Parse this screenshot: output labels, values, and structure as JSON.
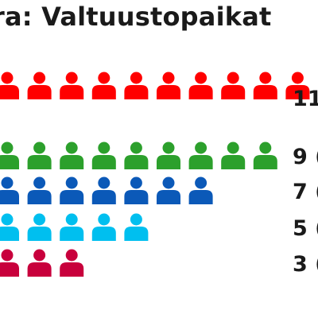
{
  "chart_data": {
    "type": "pictogram",
    "title": "ra: Valtuustopaikat",
    "rows": [
      {
        "seats": 11,
        "label": "11",
        "color": "#ff0000"
      },
      {
        "seats": 9,
        "label": "9 (",
        "color": "#2ca02c"
      },
      {
        "seats": 7,
        "label": "7 (",
        "color": "#0b59b8"
      },
      {
        "seats": 5,
        "label": "5 (",
        "color": "#00bfef"
      },
      {
        "seats": 3,
        "label": "3 (",
        "color": "#c8003c"
      }
    ]
  }
}
